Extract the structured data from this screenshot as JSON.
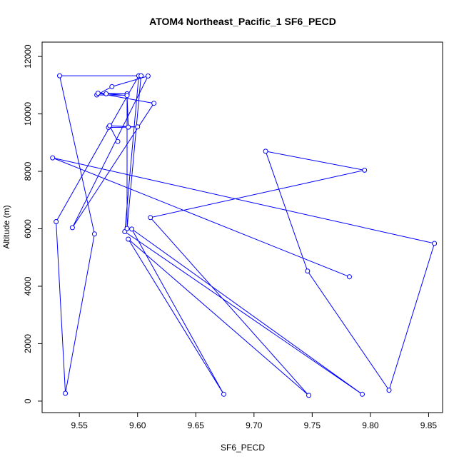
{
  "chart_data": {
    "type": "line",
    "title": "ATOM4 Northeast_Pacific_1 SF6_PECD",
    "xlabel": "SF6_PECD",
    "ylabel": "Altitude (m)",
    "xlim": [
      9.518,
      9.862
    ],
    "ylim": [
      -400,
      12500
    ],
    "x_ticks": [
      9.55,
      9.6,
      9.65,
      9.7,
      9.75,
      9.8,
      9.85
    ],
    "x_tick_labels": [
      "9.55",
      "9.60",
      "9.65",
      "9.70",
      "9.75",
      "9.80",
      "9.85"
    ],
    "y_ticks": [
      0,
      2000,
      4000,
      6000,
      8000,
      10000,
      12000
    ],
    "y_tick_labels": [
      "0",
      "2000",
      "4000",
      "6000",
      "8000",
      "10000",
      "12000"
    ],
    "series": [
      {
        "color": "#0000ff",
        "marker": "open-circle",
        "points": [
          {
            "x": 9.782,
            "y": 4330
          },
          {
            "x": 9.527,
            "y": 8470
          },
          {
            "x": 9.855,
            "y": 5490
          },
          {
            "x": 9.816,
            "y": 380
          },
          {
            "x": 9.746,
            "y": 4530
          },
          {
            "x": 9.71,
            "y": 8700
          },
          {
            "x": 9.795,
            "y": 8040
          },
          {
            "x": 9.611,
            "y": 6390
          },
          {
            "x": 9.747,
            "y": 200
          },
          {
            "x": 9.592,
            "y": 5640
          },
          {
            "x": 9.674,
            "y": 240
          },
          {
            "x": 9.595,
            "y": 5990
          },
          {
            "x": 9.793,
            "y": 240
          },
          {
            "x": 9.589,
            "y": 5900
          },
          {
            "x": 9.601,
            "y": 11330
          },
          {
            "x": 9.53,
            "y": 6250
          },
          {
            "x": 9.538,
            "y": 270
          },
          {
            "x": 9.563,
            "y": 5820
          },
          {
            "x": 9.533,
            "y": 11330
          },
          {
            "x": 9.603,
            "y": 11330
          },
          {
            "x": 9.591,
            "y": 6010
          },
          {
            "x": 9.591,
            "y": 10650
          },
          {
            "x": 9.565,
            "y": 10660
          },
          {
            "x": 9.578,
            "y": 10950
          },
          {
            "x": 9.609,
            "y": 11320
          },
          {
            "x": 9.544,
            "y": 6040
          },
          {
            "x": 9.614,
            "y": 10370
          },
          {
            "x": 9.566,
            "y": 10720
          },
          {
            "x": 9.591,
            "y": 10700
          },
          {
            "x": 9.573,
            "y": 10700
          },
          {
            "x": 9.591,
            "y": 10640
          },
          {
            "x": 9.592,
            "y": 9540
          },
          {
            "x": 9.575,
            "y": 9530
          },
          {
            "x": 9.6,
            "y": 9550
          },
          {
            "x": 9.576,
            "y": 9590
          },
          {
            "x": 9.583,
            "y": 9040
          }
        ]
      }
    ]
  }
}
